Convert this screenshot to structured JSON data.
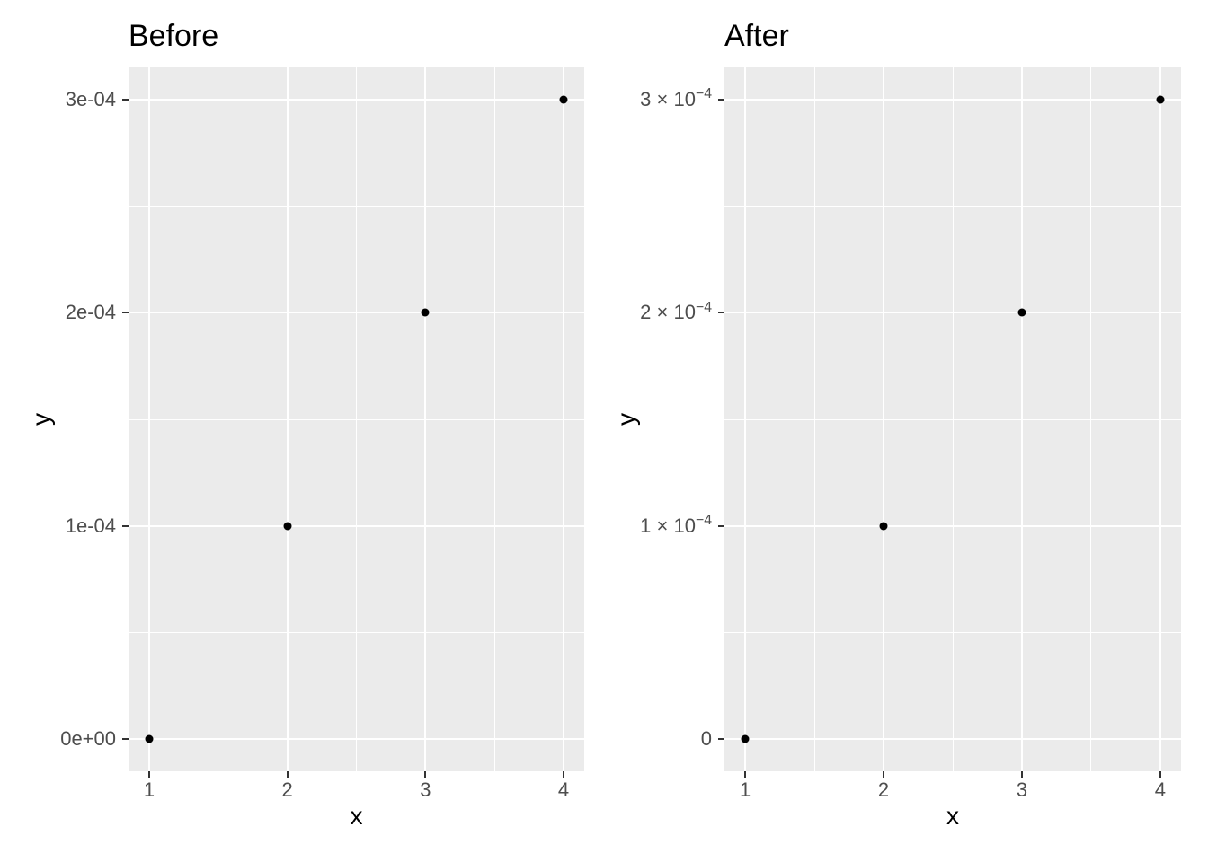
{
  "figure": {
    "background": "#ffffff",
    "panel_background": "#ebebeb",
    "grid_color": "#ffffff",
    "axis_text_color": "#4d4d4d",
    "tick_mark_color": "#333333",
    "title_color": "#000000",
    "point_color": "#000000"
  },
  "chart_data": [
    {
      "type": "scatter",
      "title": "Before",
      "xlabel": "x",
      "ylabel": "y",
      "x": [
        1,
        2,
        3,
        4
      ],
      "y": [
        0.0,
        0.0001,
        0.0002,
        0.0003
      ],
      "xlim": [
        1,
        4
      ],
      "ylim": [
        0,
        0.0003
      ],
      "expansion": 0.05,
      "grid": "major-and-minor",
      "legend_position": "none",
      "x_ticks": [
        {
          "value": 1,
          "label": "1"
        },
        {
          "value": 2,
          "label": "2"
        },
        {
          "value": 3,
          "label": "3"
        },
        {
          "value": 4,
          "label": "4"
        }
      ],
      "y_ticks": [
        {
          "value": 0.0,
          "label": "0e+00"
        },
        {
          "value": 0.0001,
          "label": "1e-04"
        },
        {
          "value": 0.0002,
          "label": "2e-04"
        },
        {
          "value": 0.0003,
          "label": "3e-04"
        }
      ]
    },
    {
      "type": "scatter",
      "title": "After",
      "xlabel": "x",
      "ylabel": "y",
      "x": [
        1,
        2,
        3,
        4
      ],
      "y": [
        0.0,
        0.0001,
        0.0002,
        0.0003
      ],
      "xlim": [
        1,
        4
      ],
      "ylim": [
        0,
        0.0003
      ],
      "expansion": 0.05,
      "grid": "major-and-minor",
      "legend_position": "none",
      "x_ticks": [
        {
          "value": 1,
          "label": "1"
        },
        {
          "value": 2,
          "label": "2"
        },
        {
          "value": 3,
          "label": "3"
        },
        {
          "value": 4,
          "label": "4"
        }
      ],
      "y_ticks": [
        {
          "value": 0.0,
          "label": "0"
        },
        {
          "value": 0.0001,
          "label": "1 × 10",
          "exponent": "−4"
        },
        {
          "value": 0.0002,
          "label": "2 × 10",
          "exponent": "−4"
        },
        {
          "value": 0.0003,
          "label": "3 × 10",
          "exponent": "−4"
        }
      ]
    }
  ]
}
